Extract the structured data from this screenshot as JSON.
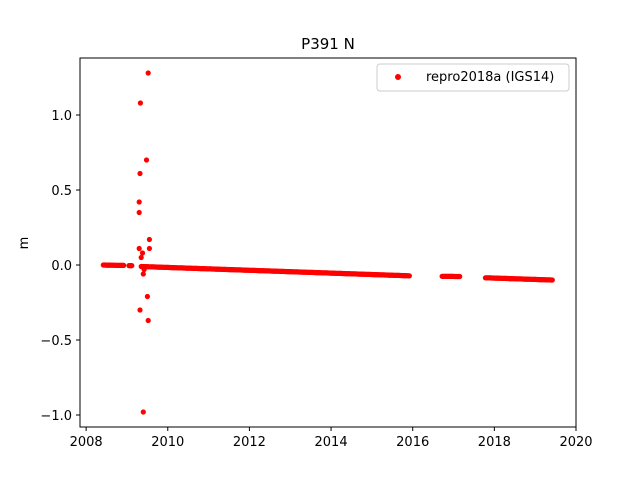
{
  "chart_data": {
    "type": "scatter",
    "title": "P391 N",
    "xlabel": "",
    "ylabel": "m",
    "xlim": [
      2007.85,
      2020.0
    ],
    "ylim": [
      -1.08,
      1.38
    ],
    "xticks": [
      2008,
      2010,
      2012,
      2014,
      2016,
      2018,
      2020
    ],
    "yticks": [
      -1.0,
      -0.5,
      0.0,
      0.5,
      1.0
    ],
    "xtick_labels": [
      "2008",
      "2010",
      "2012",
      "2014",
      "2016",
      "2018",
      "2020"
    ],
    "ytick_labels": [
      "−1.0",
      "−0.5",
      "0.0",
      "0.5",
      "1.0"
    ],
    "grid": false,
    "legend_position": "top-right",
    "series": [
      {
        "name": "repro2018a (IGS14)",
        "color": "#ff0000",
        "marker": "circle",
        "segments": [
          {
            "x_start": 2008.42,
            "x_end": 2008.92,
            "y_start": 0.0,
            "y_end": -0.003
          },
          {
            "x_start": 2009.05,
            "x_end": 2009.12,
            "y_start": -0.004,
            "y_end": -0.004
          },
          {
            "x_start": 2009.35,
            "x_end": 2015.92,
            "y_start": -0.01,
            "y_end": -0.072
          },
          {
            "x_start": 2016.72,
            "x_end": 2017.15,
            "y_start": -0.075,
            "y_end": -0.077
          },
          {
            "x_start": 2017.78,
            "x_end": 2019.42,
            "y_start": -0.085,
            "y_end": -0.1
          }
        ],
        "outliers": [
          {
            "x": 2009.52,
            "y": 1.28
          },
          {
            "x": 2009.33,
            "y": 1.08
          },
          {
            "x": 2009.48,
            "y": 0.7
          },
          {
            "x": 2009.32,
            "y": 0.61
          },
          {
            "x": 2009.3,
            "y": 0.42
          },
          {
            "x": 2009.3,
            "y": 0.35
          },
          {
            "x": 2009.55,
            "y": 0.17
          },
          {
            "x": 2009.3,
            "y": 0.11
          },
          {
            "x": 2009.55,
            "y": 0.11
          },
          {
            "x": 2009.38,
            "y": 0.08
          },
          {
            "x": 2009.35,
            "y": 0.05
          },
          {
            "x": 2009.42,
            "y": -0.03
          },
          {
            "x": 2009.4,
            "y": -0.06
          },
          {
            "x": 2009.5,
            "y": -0.21
          },
          {
            "x": 2009.32,
            "y": -0.3
          },
          {
            "x": 2009.52,
            "y": -0.37
          },
          {
            "x": 2009.4,
            "y": -0.98
          }
        ]
      }
    ]
  }
}
